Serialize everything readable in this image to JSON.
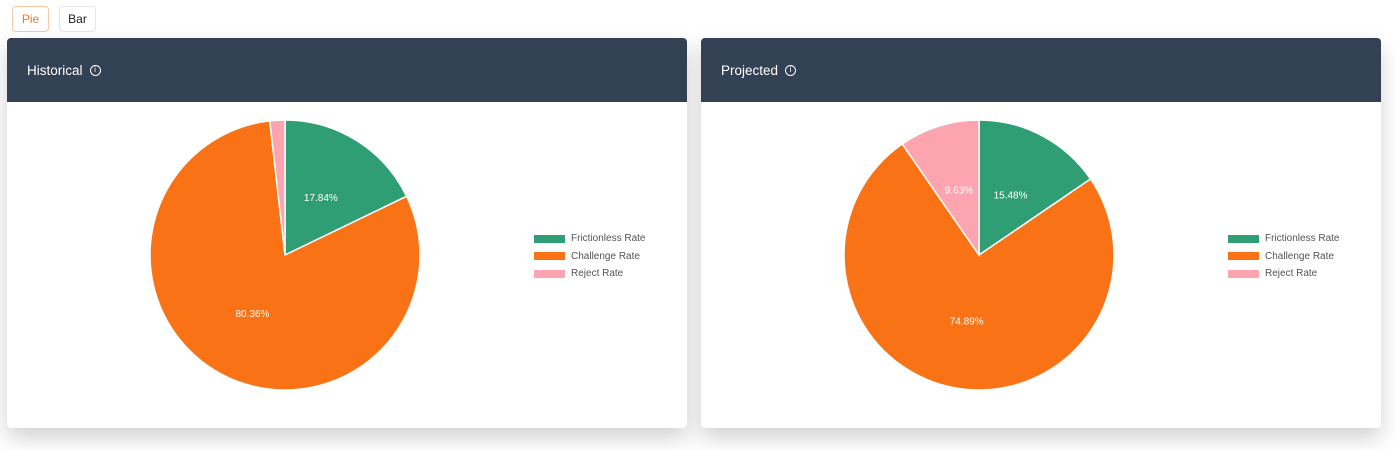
{
  "toggle": {
    "pie_label": "Pie",
    "bar_label": "Bar",
    "active": "Pie"
  },
  "colors": {
    "frictionless": "#2f9e74",
    "challenge": "#f97316",
    "reject": "#fca5b1",
    "header_bg": "#334155"
  },
  "cards": [
    {
      "title": "Historical",
      "legend": [
        "Frictionless Rate",
        "Challenge Rate",
        "Reject Rate"
      ],
      "labels": {
        "frictionless": "17.84%",
        "challenge": "80.36%",
        "reject": ""
      }
    },
    {
      "title": "Projected",
      "legend": [
        "Frictionless Rate",
        "Challenge Rate",
        "Reject Rate"
      ],
      "labels": {
        "frictionless": "15.48%",
        "challenge": "74.89%",
        "reject": "9.63%"
      }
    }
  ],
  "chart_data": [
    {
      "type": "pie",
      "title": "Historical",
      "categories": [
        "Frictionless Rate",
        "Challenge Rate",
        "Reject Rate"
      ],
      "values": [
        17.84,
        80.36,
        1.8
      ],
      "legend_position": "right"
    },
    {
      "type": "pie",
      "title": "Projected",
      "categories": [
        "Frictionless Rate",
        "Challenge Rate",
        "Reject Rate"
      ],
      "values": [
        15.48,
        74.89,
        9.63
      ],
      "legend_position": "right"
    }
  ]
}
